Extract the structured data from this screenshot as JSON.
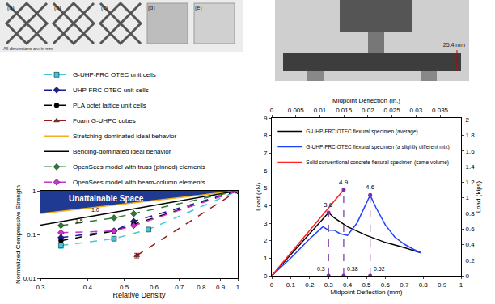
{
  "photos": {
    "left": {
      "labels": [
        "(a)",
        "(b)",
        "(c)",
        "(d)",
        "(e)"
      ],
      "note": "All dimensions are in mm"
    },
    "right": {
      "label": "25.4 mm"
    }
  },
  "chart_data": [
    {
      "type": "line",
      "x_label": "Relative Density",
      "y_label": "Normalized Compressive Strength",
      "log": true,
      "grid": false,
      "legend": "top",
      "xlim": [
        0.3,
        1
      ],
      "ylim": [
        0.01,
        1
      ],
      "xticks": [
        0.3,
        0.4,
        0.5,
        0.6,
        0.7,
        0.8,
        0.9,
        1
      ],
      "yticks": [
        0.01,
        0.1,
        1
      ],
      "series": [
        {
          "name": "Unattainable Space",
          "type": "area",
          "color": "#1f3a93",
          "x": [
            0.3,
            1,
            0.3
          ],
          "y": [
            0.3,
            1,
            1
          ]
        },
        {
          "name": "G-UHP-FRC OTEC unit cells",
          "color": "#40c8d8",
          "marker": "square",
          "line_style": "dashed",
          "x": [
            0.34,
            0.47,
            0.58,
            1
          ],
          "y": [
            0.056,
            0.08,
            0.13,
            1
          ],
          "error": [
            0.008,
            0.008,
            0.01,
            0
          ]
        },
        {
          "name": "UHP-FRC OTEC unit cells",
          "color": "#1a1a9c",
          "marker": "diamond",
          "line_style": "dashed",
          "x": [
            0.34,
            0.47,
            0.53,
            1
          ],
          "y": [
            0.085,
            0.12,
            0.2,
            1
          ]
        },
        {
          "name": "PLA octet lattice unit cells",
          "color": "#000000",
          "marker": "circle",
          "line_style": "dashed",
          "x": [
            0.34,
            0.47,
            0.53,
            1
          ],
          "y": [
            0.072,
            0.12,
            0.17,
            1
          ]
        },
        {
          "name": "Foam G-UHPC cubes",
          "color": "#a01818",
          "marker": "triangle-up",
          "line_style": "dashed",
          "x": [
            0.54,
            1
          ],
          "y": [
            0.033,
            1
          ],
          "error": [
            0.004,
            0
          ]
        },
        {
          "name": "Stretching-dominated ideal behavior",
          "color": "#f0b020",
          "marker": "none",
          "line_style": "solid",
          "x": [
            0.3,
            1
          ],
          "y": [
            0.3,
            1
          ]
        },
        {
          "name": "Bending-dominated ideal behavior",
          "color": "#000000",
          "marker": "none",
          "line_style": "solid",
          "x": [
            0.3,
            1
          ],
          "y": [
            0.164,
            1
          ]
        },
        {
          "name": "OpenSees model with truss (pinned) elements",
          "color": "#2e7d32",
          "marker": "diamond",
          "line_style": "dashed",
          "x": [
            0.34,
            0.47,
            0.53,
            1
          ],
          "y": [
            0.16,
            0.24,
            0.3,
            1
          ]
        },
        {
          "name": "OpenSees model with beam-column elements",
          "color": "#d030d0",
          "marker": "diamond",
          "line_style": "dashed",
          "x": [
            0.34,
            0.47,
            0.53,
            1
          ],
          "y": [
            0.11,
            0.12,
            0.16,
            1
          ]
        }
      ],
      "annotations": [
        {
          "text": "1.0",
          "x": 0.42,
          "y": 0.36
        },
        {
          "text": "1.5",
          "x": 0.38,
          "y": 0.2
        }
      ]
    },
    {
      "type": "line",
      "x_label": "Midpoint Deflection (mm)",
      "x2_label": "Midpoint Deflection (in.)",
      "y_label": "Load (kN)",
      "y2_label": "Load (kips)",
      "grid": false,
      "legend": "top-left",
      "xlim": [
        0,
        1
      ],
      "xticks": [
        0,
        0.1,
        0.2,
        0.3,
        0.4,
        0.5,
        0.6,
        0.7,
        0.8,
        0.9,
        1
      ],
      "x2lim": [
        0,
        0.03937
      ],
      "x2ticks": [
        0,
        0.005,
        0.01,
        0.015,
        0.02,
        0.025,
        0.03,
        0.035
      ],
      "ylim": [
        0,
        9
      ],
      "yticks": [
        0,
        1,
        2,
        3,
        4,
        5,
        6,
        7,
        8,
        9
      ],
      "y2lim": [
        0,
        2.0233
      ],
      "y2ticks": [
        0,
        0.2,
        0.4,
        0.6,
        0.8,
        1,
        1.2,
        1.4,
        1.6,
        1.8,
        2
      ],
      "series": [
        {
          "name": "G-UHP-FRC OTEC flexural specimen (average)",
          "color": "#000000",
          "line_style": "solid",
          "marker": "none",
          "x": [
            0,
            0.1,
            0.2,
            0.3,
            0.33,
            0.4,
            0.5,
            0.6,
            0.7,
            0.79
          ],
          "y": [
            0,
            1.2,
            2.4,
            3.6,
            3.3,
            2.8,
            2.3,
            1.9,
            1.6,
            1.3
          ]
        },
        {
          "name": "G-UHP-FRC OTEC flexural specimen (a slightly different mix)",
          "color": "#1f3fff",
          "line_style": "solid",
          "marker": "none",
          "x": [
            0,
            0.1,
            0.2,
            0.27,
            0.3,
            0.33,
            0.36,
            0.4,
            0.45,
            0.52,
            0.55,
            0.6,
            0.65,
            0.7,
            0.75,
            0.79
          ],
          "y": [
            0,
            1.0,
            2.1,
            2.8,
            2.6,
            2.6,
            2.4,
            2.3,
            3.0,
            4.6,
            3.9,
            2.9,
            2.2,
            1.8,
            1.5,
            1.3
          ]
        },
        {
          "name": "Solid conventional concrete flexural specimen (same volume)",
          "color": "#ff2020",
          "line_style": "solid",
          "marker": "none",
          "x": [
            0,
            0.38
          ],
          "y": [
            0,
            4.9
          ]
        }
      ],
      "peaks": {
        "color": "#7b2fa0",
        "points": [
          {
            "x": 0.3,
            "y": 3.6,
            "label": "3.6",
            "x_label": "0.3"
          },
          {
            "x": 0.38,
            "y": 4.9,
            "label": "4.9",
            "x_label": "0.38"
          },
          {
            "x": 0.52,
            "y": 4.6,
            "label": "4.6",
            "x_label": "0.52"
          }
        ]
      }
    }
  ]
}
